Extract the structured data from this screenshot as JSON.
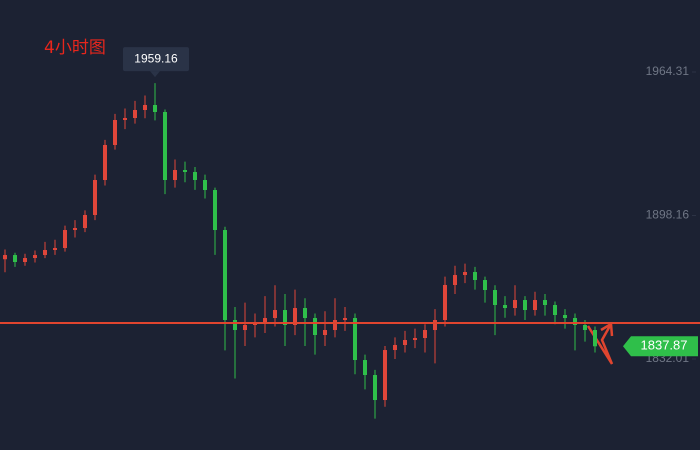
{
  "chart_data": {
    "type": "candlestick",
    "title": "4小时图",
    "series": [
      {
        "up_color": "#e0463a",
        "down_color": "#2fbf4a",
        "open": [
          1878.0,
          1879.94,
          1876.72,
          1878.56,
          1879.94,
          1882.25,
          1883.17,
          1891.47,
          1892.39,
          1898.39,
          1914.52,
          1930.66,
          1942.18,
          1943.1,
          1946.79,
          1949.1,
          1945.87,
          1914.52,
          1919.13,
          1918.21,
          1914.52,
          1909.91,
          1891.47,
          1849.98,
          1845.37,
          1847.68,
          1849.06,
          1850.9,
          1854.59,
          1847.68,
          1855.51,
          1850.9,
          1843.07,
          1845.37,
          1849.98,
          1850.9,
          1831.54,
          1824.63,
          1813.1,
          1836.15,
          1838.46,
          1840.76,
          1841.68,
          1845.37,
          1849.98,
          1866.12,
          1870.72,
          1872.11,
          1868.42,
          1863.81,
          1856.9,
          1855.51,
          1859.2,
          1854.59,
          1859.2,
          1856.9,
          1852.29,
          1850.9,
          1847.68,
          1845.37
        ],
        "high": [
          1882.5,
          1881.0,
          1880.5,
          1882.0,
          1886.0,
          1887.0,
          1893.5,
          1896.0,
          1900.5,
          1917.0,
          1933.0,
          1945.0,
          1947.5,
          1951.0,
          1953.5,
          1959.16,
          1947.0,
          1924.0,
          1923.0,
          1920.5,
          1917.0,
          1911.0,
          1893.0,
          1856.0,
          1858.0,
          1853.0,
          1861.0,
          1866.0,
          1862.0,
          1864.0,
          1860.0,
          1853.0,
          1854.0,
          1860.0,
          1856.0,
          1853.0,
          1834.0,
          1827.0,
          1838.0,
          1842.0,
          1845.0,
          1846.0,
          1848.0,
          1855.0,
          1870.0,
          1875.0,
          1876.0,
          1874.5,
          1870.0,
          1866.0,
          1861.0,
          1866.0,
          1861.0,
          1863.0,
          1862.0,
          1858.5,
          1855.0,
          1853.0,
          1850.0,
          1847.0
        ],
        "low": [
          1872.0,
          1874.5,
          1875.0,
          1876.5,
          1878.5,
          1880.0,
          1881.5,
          1888.0,
          1890.5,
          1896.0,
          1912.0,
          1928.5,
          1938.0,
          1940.5,
          1943.0,
          1942.0,
          1908.0,
          1911.0,
          1913.5,
          1910.0,
          1906.0,
          1880.0,
          1836.0,
          1823.0,
          1838.0,
          1842.0,
          1844.0,
          1847.0,
          1838.0,
          1843.0,
          1838.0,
          1834.0,
          1838.0,
          1842.0,
          1845.0,
          1825.0,
          1818.0,
          1804.5,
          1810.0,
          1832.0,
          1835.0,
          1837.0,
          1835.0,
          1830.0,
          1847.0,
          1862.0,
          1867.0,
          1864.0,
          1858.0,
          1843.0,
          1851.0,
          1852.0,
          1850.0,
          1852.0,
          1852.0,
          1848.0,
          1846.0,
          1836.0,
          1840.0,
          1835.0
        ],
        "close": [
          1879.94,
          1876.72,
          1878.56,
          1879.94,
          1882.25,
          1883.17,
          1891.47,
          1892.39,
          1898.39,
          1914.52,
          1930.66,
          1942.18,
          1943.1,
          1946.79,
          1949.1,
          1945.87,
          1914.52,
          1919.13,
          1918.21,
          1914.52,
          1909.91,
          1891.47,
          1849.98,
          1845.37,
          1847.68,
          1849.06,
          1850.9,
          1854.59,
          1847.68,
          1855.51,
          1850.9,
          1843.07,
          1845.37,
          1849.98,
          1850.9,
          1831.54,
          1824.63,
          1813.1,
          1836.15,
          1838.46,
          1840.76,
          1841.68,
          1845.37,
          1849.98,
          1866.12,
          1870.72,
          1872.11,
          1868.42,
          1863.81,
          1856.9,
          1855.51,
          1859.2,
          1854.59,
          1859.2,
          1856.9,
          1852.29,
          1850.9,
          1847.68,
          1845.37,
          1837.87
        ]
      }
    ],
    "ylim": [
      1790.06,
      1997.5
    ],
    "yticks": [
      1832.01,
      1898.16,
      1964.31
    ],
    "grid": false,
    "reference_line": {
      "value": 1848.6,
      "color": "#e0452f"
    }
  }
}
